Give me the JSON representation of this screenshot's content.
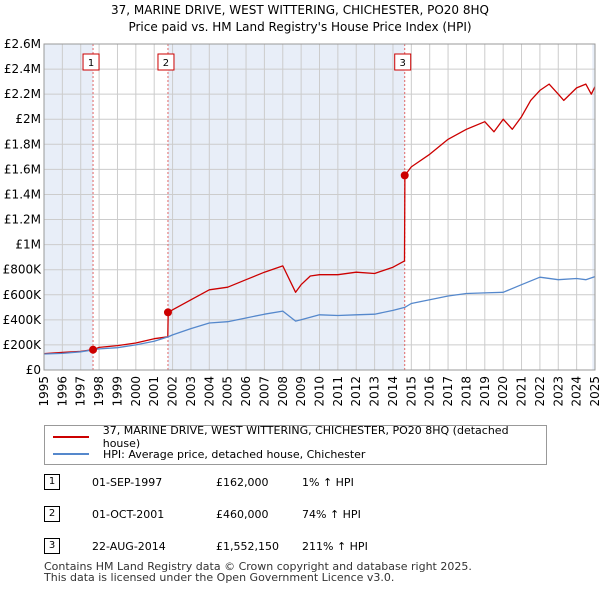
{
  "header": {
    "title_line1": "37, MARINE DRIVE, WEST WITTERING, CHICHESTER, PO20 8HQ",
    "title_line2": "Price paid vs. HM Land Registry's House Price Index (HPI)"
  },
  "chart_data": {
    "type": "line",
    "title": "37, MARINE DRIVE, WEST WITTERING, CHICHESTER, PO20 8HQ — Price paid vs. HM Land Registry's House Price Index (HPI)",
    "xlabel": "",
    "ylabel": "",
    "xlim": [
      1995,
      2025
    ],
    "ylim": [
      0,
      2600000
    ],
    "x_ticks": [
      1995,
      1996,
      1997,
      1998,
      1999,
      2000,
      2001,
      2002,
      2003,
      2004,
      2005,
      2006,
      2007,
      2008,
      2009,
      2010,
      2011,
      2012,
      2013,
      2014,
      2015,
      2016,
      2017,
      2018,
      2019,
      2020,
      2021,
      2022,
      2023,
      2024,
      2025
    ],
    "y_ticks": [
      {
        "value": 0,
        "label": "£0"
      },
      {
        "value": 200000,
        "label": "£200K"
      },
      {
        "value": 400000,
        "label": "£400K"
      },
      {
        "value": 600000,
        "label": "£600K"
      },
      {
        "value": 800000,
        "label": "£800K"
      },
      {
        "value": 1000000,
        "label": "£1M"
      },
      {
        "value": 1200000,
        "label": "£1.2M"
      },
      {
        "value": 1400000,
        "label": "£1.4M"
      },
      {
        "value": 1600000,
        "label": "£1.6M"
      },
      {
        "value": 1800000,
        "label": "£1.8M"
      },
      {
        "value": 2000000,
        "label": "£2M"
      },
      {
        "value": 2200000,
        "label": "£2.2M"
      },
      {
        "value": 2400000,
        "label": "£2.4M"
      },
      {
        "value": 2600000,
        "label": "£2.6M"
      }
    ],
    "grid": true,
    "legend_position": "below",
    "shaded_regions": [
      [
        1995,
        1997.67
      ],
      [
        2001.75,
        2014.64
      ],
      [
        2024.85,
        2025
      ]
    ],
    "series": [
      {
        "name": "37, MARINE DRIVE, WEST WITTERING, CHICHESTER, PO20 8HQ (detached house)",
        "color": "#cc0000",
        "x": [
          1995,
          1996,
          1997,
          1997.67,
          1998,
          1999,
          2000,
          2001,
          2001.74,
          2001.76,
          2002,
          2003,
          2004,
          2005,
          2006,
          2007,
          2008,
          2008.7,
          2009,
          2009.5,
          2010,
          2011,
          2012,
          2013,
          2014,
          2014.63,
          2014.65,
          2015,
          2016,
          2016.5,
          2017,
          2018,
          2019,
          2019.5,
          2020,
          2020.5,
          2021,
          2021.5,
          2022,
          2022.5,
          2023,
          2023.3,
          2024,
          2024.5,
          2024.8,
          2025
        ],
        "values": [
          130000,
          140000,
          148000,
          162000,
          180000,
          195000,
          215000,
          250000,
          265000,
          460000,
          480000,
          560000,
          640000,
          660000,
          720000,
          780000,
          830000,
          620000,
          680000,
          750000,
          760000,
          760000,
          780000,
          770000,
          820000,
          870000,
          1552150,
          1620000,
          1720000,
          1780000,
          1840000,
          1920000,
          1980000,
          1900000,
          2000000,
          1920000,
          2020000,
          2150000,
          2230000,
          2280000,
          2200000,
          2150000,
          2250000,
          2280000,
          2200000,
          2260000
        ]
      },
      {
        "name": "HPI: Average price, detached house, Chichester",
        "color": "#5588cc",
        "x": [
          1995,
          1996,
          1997,
          1997.67,
          1998,
          1999,
          2000,
          2001,
          2001.75,
          2002,
          2003,
          2004,
          2005,
          2006,
          2007,
          2008,
          2008.7,
          2009,
          2010,
          2011,
          2012,
          2013,
          2014,
          2014.64,
          2015,
          2016,
          2017,
          2018,
          2019,
          2020,
          2021,
          2022,
          2023,
          2024,
          2024.5,
          2025
        ],
        "values": [
          128000,
          132000,
          145000,
          160000,
          168000,
          178000,
          200000,
          230000,
          264000,
          280000,
          330000,
          375000,
          385000,
          415000,
          445000,
          470000,
          390000,
          400000,
          440000,
          435000,
          440000,
          445000,
          475000,
          499000,
          530000,
          560000,
          590000,
          610000,
          615000,
          620000,
          680000,
          740000,
          720000,
          730000,
          720000,
          745000
        ]
      }
    ],
    "sale_markers": [
      {
        "label": "1",
        "date": "01-SEP-1997",
        "x": 1997.67,
        "price": 162000,
        "price_label": "£162,000",
        "hpi_label": "1% ↑ HPI"
      },
      {
        "label": "2",
        "date": "01-OCT-2001",
        "x": 2001.75,
        "price": 460000,
        "price_label": "£460,000",
        "hpi_label": "74% ↑ HPI"
      },
      {
        "label": "3",
        "date": "22-AUG-2014",
        "x": 2014.64,
        "price": 1552150,
        "price_label": "£1,552,150",
        "hpi_label": "211% ↑ HPI"
      }
    ]
  },
  "legend": {
    "items": [
      {
        "label": "37, MARINE DRIVE, WEST WITTERING, CHICHESTER, PO20 8HQ (detached house)",
        "color": "#cc0000"
      },
      {
        "label": "HPI: Average price, detached house, Chichester",
        "color": "#5588cc"
      }
    ]
  },
  "sales_table": {
    "rows": [
      {
        "num": "1",
        "date": "01-SEP-1997",
        "price": "£162,000",
        "hpi": "1% ↑ HPI"
      },
      {
        "num": "2",
        "date": "01-OCT-2001",
        "price": "£460,000",
        "hpi": "74% ↑ HPI"
      },
      {
        "num": "3",
        "date": "22-AUG-2014",
        "price": "£1,552,150",
        "hpi": "211% ↑ HPI"
      }
    ]
  },
  "footer": {
    "line1": "Contains HM Land Registry data © Crown copyright and database right 2025.",
    "line2": "This data is licensed under the Open Government Licence v3.0."
  }
}
